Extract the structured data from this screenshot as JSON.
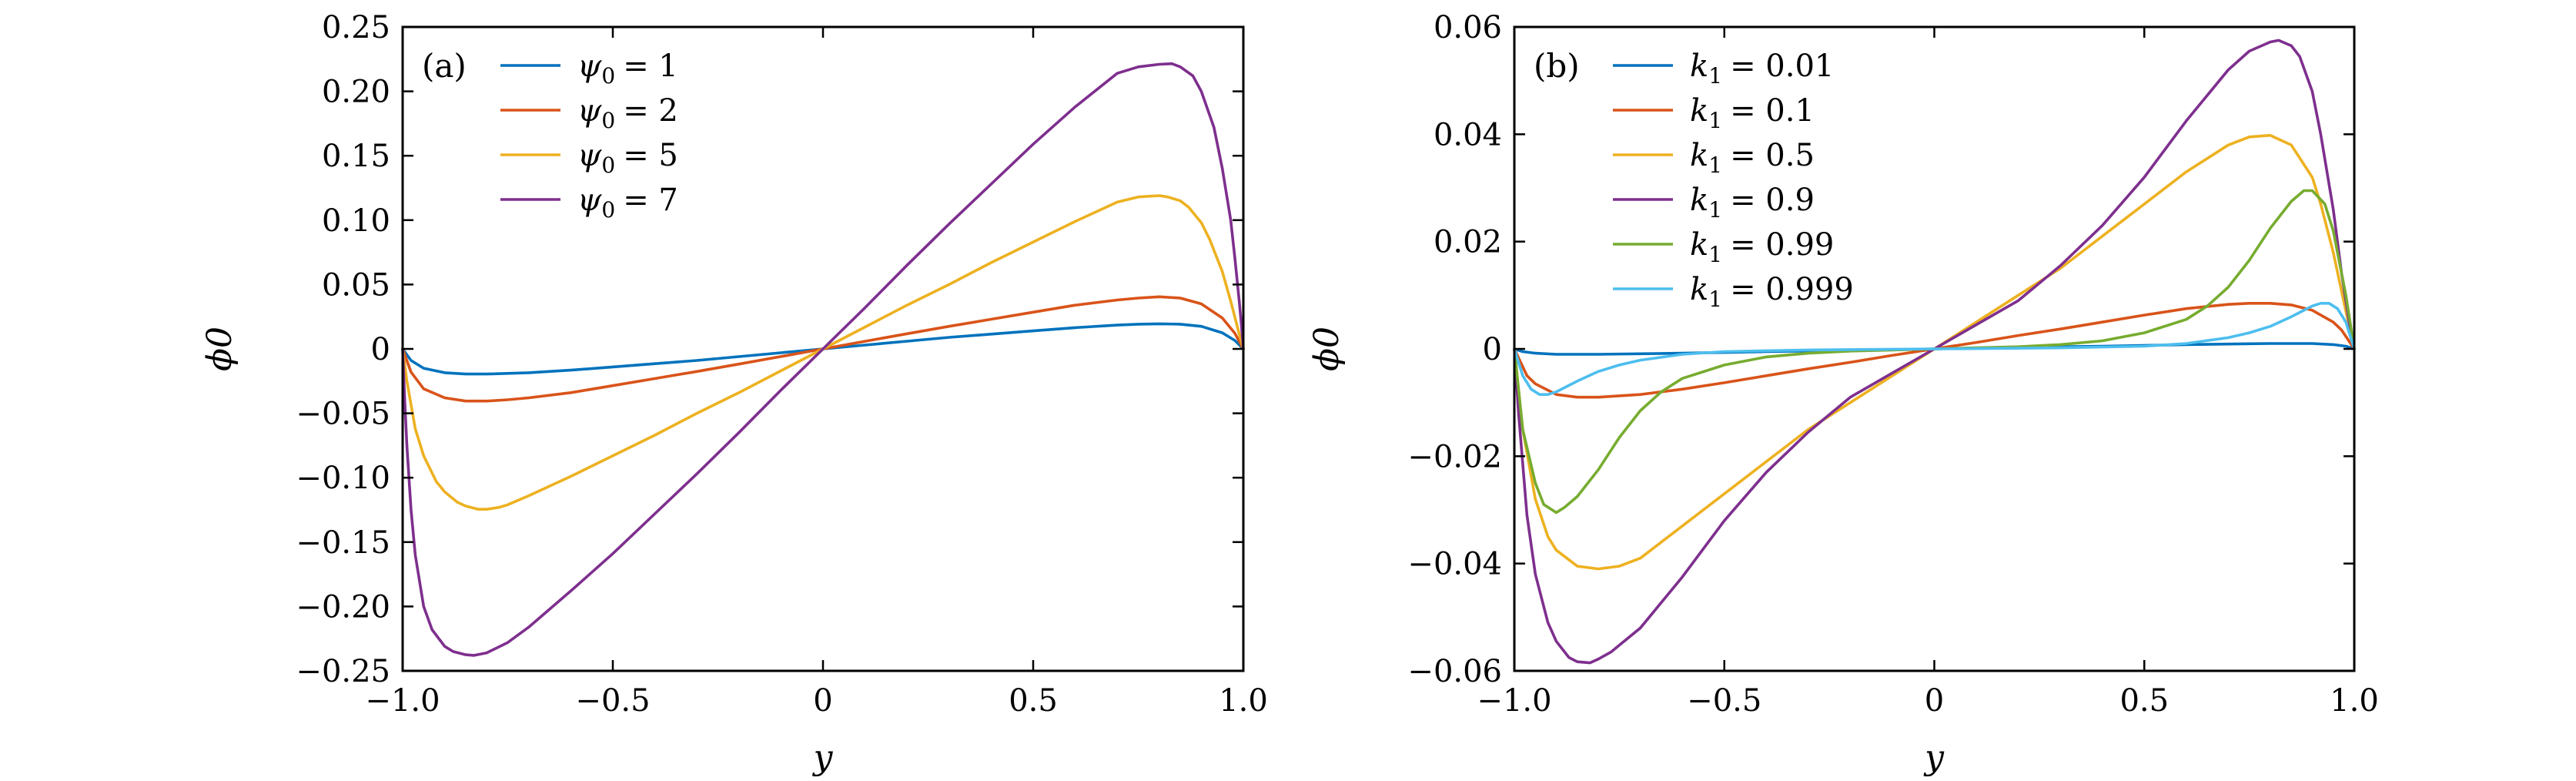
{
  "chart_data": [
    {
      "type": "line",
      "panel_label": "(a)",
      "xlabel": "y",
      "ylabel": "ϕ0",
      "xlim": [
        -1.0,
        1.0
      ],
      "ylim": [
        -0.25,
        0.25
      ],
      "xticks": [
        -1.0,
        -0.5,
        0,
        0.5,
        1.0
      ],
      "xtick_labels": [
        "−1.0",
        "−0.5",
        "0",
        "0.5",
        "1.0"
      ],
      "yticks": [
        0.25,
        0.2,
        0.15,
        0.1,
        0.05,
        0,
        -0.05,
        -0.1,
        -0.15,
        -0.2,
        -0.25
      ],
      "ytick_labels": [
        "0.25",
        "0.20",
        "0.15",
        "0.10",
        "0.05",
        "0",
        "−0.05",
        "−0.10",
        "−0.15",
        "−0.20",
        "−0.25"
      ],
      "legend_position": "top-left",
      "series": [
        {
          "legend_var": "ψ",
          "legend_sub": "0",
          "legend_value": "= 1",
          "color": "#0072bd",
          "x": [
            -1.0,
            -0.98,
            -0.95,
            -0.9,
            -0.85,
            -0.8,
            -0.7,
            -0.6,
            -0.5,
            -0.4,
            -0.3,
            -0.2,
            -0.1,
            0.0,
            0.1,
            0.2,
            0.3,
            0.4,
            0.5,
            0.6,
            0.7,
            0.75,
            0.8,
            0.85,
            0.9,
            0.95,
            0.98,
            1.0
          ],
          "values": [
            0.0,
            -0.009,
            -0.015,
            -0.0185,
            -0.0195,
            -0.0195,
            -0.0185,
            -0.0165,
            -0.014,
            -0.0115,
            -0.009,
            -0.006,
            -0.003,
            0.0,
            0.003,
            0.006,
            0.009,
            0.0115,
            0.014,
            0.0165,
            0.0185,
            0.0192,
            0.0195,
            0.0192,
            0.0175,
            0.0125,
            0.0065,
            0.0
          ]
        },
        {
          "legend_var": "ψ",
          "legend_sub": "0",
          "legend_value": "= 2",
          "color": "#d95319",
          "x": [
            -1.0,
            -0.98,
            -0.95,
            -0.9,
            -0.85,
            -0.8,
            -0.75,
            -0.7,
            -0.6,
            -0.5,
            -0.4,
            -0.3,
            -0.2,
            -0.1,
            0.0,
            0.1,
            0.2,
            0.3,
            0.4,
            0.5,
            0.6,
            0.7,
            0.75,
            0.8,
            0.85,
            0.9,
            0.95,
            0.98,
            1.0
          ],
          "values": [
            0.0,
            -0.018,
            -0.031,
            -0.038,
            -0.0405,
            -0.0405,
            -0.0395,
            -0.038,
            -0.034,
            -0.0285,
            -0.023,
            -0.0175,
            -0.0118,
            -0.0059,
            0.0,
            0.0059,
            0.0118,
            0.0175,
            0.023,
            0.0285,
            0.034,
            0.038,
            0.0395,
            0.0405,
            0.0395,
            0.035,
            0.024,
            0.012,
            0.0
          ]
        },
        {
          "legend_var": "ψ",
          "legend_sub": "0",
          "legend_value": "= 5",
          "color": "#edb120",
          "x": [
            -1.0,
            -0.99,
            -0.97,
            -0.95,
            -0.92,
            -0.9,
            -0.87,
            -0.85,
            -0.82,
            -0.8,
            -0.77,
            -0.75,
            -0.7,
            -0.6,
            -0.5,
            -0.4,
            -0.3,
            -0.2,
            -0.1,
            0.0,
            0.1,
            0.2,
            0.3,
            0.4,
            0.5,
            0.6,
            0.7,
            0.75,
            0.8,
            0.82,
            0.85,
            0.87,
            0.9,
            0.92,
            0.95,
            0.97,
            0.99,
            1.0
          ],
          "values": [
            0.0,
            -0.025,
            -0.062,
            -0.083,
            -0.103,
            -0.111,
            -0.119,
            -0.122,
            -0.1245,
            -0.1245,
            -0.123,
            -0.121,
            -0.114,
            -0.099,
            -0.083,
            -0.067,
            -0.05,
            -0.034,
            -0.017,
            0.0,
            0.017,
            0.034,
            0.05,
            0.067,
            0.083,
            0.099,
            0.114,
            0.118,
            0.119,
            0.118,
            0.115,
            0.11,
            0.098,
            0.085,
            0.06,
            0.037,
            0.012,
            0.0
          ]
        },
        {
          "legend_var": "ψ",
          "legend_sub": "0",
          "legend_value": "= 7",
          "color": "#7e2f8e",
          "x": [
            -1.0,
            -0.995,
            -0.99,
            -0.98,
            -0.97,
            -0.95,
            -0.93,
            -0.9,
            -0.88,
            -0.85,
            -0.83,
            -0.8,
            -0.75,
            -0.7,
            -0.6,
            -0.5,
            -0.4,
            -0.3,
            -0.2,
            -0.1,
            0.0,
            0.1,
            0.2,
            0.3,
            0.4,
            0.5,
            0.6,
            0.7,
            0.75,
            0.8,
            0.83,
            0.85,
            0.88,
            0.9,
            0.93,
            0.95,
            0.97,
            0.98,
            0.99,
            0.995,
            1.0
          ],
          "values": [
            0.0,
            -0.04,
            -0.075,
            -0.125,
            -0.16,
            -0.2,
            -0.218,
            -0.231,
            -0.235,
            -0.2375,
            -0.238,
            -0.236,
            -0.228,
            -0.216,
            -0.188,
            -0.159,
            -0.128,
            -0.097,
            -0.065,
            -0.032,
            0.0,
            0.032,
            0.065,
            0.097,
            0.128,
            0.159,
            0.188,
            0.214,
            0.219,
            0.221,
            0.2215,
            0.219,
            0.212,
            0.2,
            0.172,
            0.14,
            0.1,
            0.07,
            0.038,
            0.02,
            0.0
          ]
        }
      ]
    },
    {
      "type": "line",
      "panel_label": "(b)",
      "xlabel": "y",
      "ylabel": "ϕ0",
      "xlim": [
        -1.0,
        1.0
      ],
      "ylim": [
        -0.06,
        0.06
      ],
      "xticks": [
        -1.0,
        -0.5,
        0,
        0.5,
        1.0
      ],
      "xtick_labels": [
        "−1.0",
        "−0.5",
        "0",
        "0.5",
        "1.0"
      ],
      "yticks": [
        0.06,
        0.04,
        0.02,
        0,
        -0.02,
        -0.04,
        -0.06
      ],
      "ytick_labels": [
        "0.06",
        "0.04",
        "0.02",
        "0",
        "−0.02",
        "−0.04",
        "−0.06"
      ],
      "legend_position": "top-left",
      "series": [
        {
          "legend_var": "k",
          "legend_sub": "1",
          "legend_value": "= 0.01",
          "color": "#0072bd",
          "x": [
            -1.0,
            -0.98,
            -0.95,
            -0.9,
            -0.8,
            -0.6,
            -0.4,
            -0.2,
            0.0,
            0.2,
            0.4,
            0.6,
            0.8,
            0.9,
            0.95,
            0.98,
            1.0
          ],
          "values": [
            0.0,
            -0.0005,
            -0.0008,
            -0.001,
            -0.001,
            -0.0008,
            -0.0005,
            -0.0003,
            0.0,
            0.0003,
            0.0005,
            0.0008,
            0.001,
            0.001,
            0.0008,
            0.0005,
            0.0
          ]
        },
        {
          "legend_var": "k",
          "legend_sub": "1",
          "legend_value": "= 0.1",
          "color": "#d95319",
          "x": [
            -1.0,
            -0.97,
            -0.95,
            -0.9,
            -0.85,
            -0.8,
            -0.7,
            -0.6,
            -0.5,
            -0.4,
            -0.3,
            -0.2,
            -0.1,
            0.0,
            0.1,
            0.2,
            0.3,
            0.4,
            0.5,
            0.6,
            0.7,
            0.75,
            0.8,
            0.85,
            0.9,
            0.95,
            0.97,
            1.0
          ],
          "values": [
            0.0,
            -0.005,
            -0.0065,
            -0.0085,
            -0.009,
            -0.009,
            -0.0085,
            -0.0075,
            -0.0063,
            -0.005,
            -0.0037,
            -0.0025,
            -0.0012,
            0.0,
            0.0012,
            0.0025,
            0.0037,
            0.005,
            0.0063,
            0.0075,
            0.0083,
            0.0085,
            0.0085,
            0.0082,
            0.0072,
            0.005,
            0.0035,
            0.0
          ]
        },
        {
          "legend_var": "k",
          "legend_sub": "1",
          "legend_value": "= 0.5",
          "color": "#edb120",
          "x": [
            -1.0,
            -0.98,
            -0.95,
            -0.92,
            -0.9,
            -0.85,
            -0.8,
            -0.75,
            -0.7,
            -0.6,
            -0.5,
            -0.4,
            -0.3,
            -0.2,
            -0.1,
            0.0,
            0.1,
            0.2,
            0.3,
            0.4,
            0.5,
            0.6,
            0.7,
            0.75,
            0.8,
            0.85,
            0.9,
            0.92,
            0.95,
            0.98,
            1.0
          ],
          "values": [
            0.0,
            -0.015,
            -0.028,
            -0.035,
            -0.0375,
            -0.0405,
            -0.041,
            -0.0405,
            -0.039,
            -0.033,
            -0.027,
            -0.021,
            -0.015,
            -0.01,
            -0.005,
            0.0,
            0.005,
            0.01,
            0.015,
            0.021,
            0.027,
            0.033,
            0.038,
            0.0395,
            0.0398,
            0.038,
            0.032,
            0.027,
            0.018,
            0.007,
            0.0
          ]
        },
        {
          "legend_var": "k",
          "legend_sub": "1",
          "legend_value": "= 0.9",
          "color": "#7e2f8e",
          "x": [
            -1.0,
            -0.99,
            -0.97,
            -0.95,
            -0.92,
            -0.9,
            -0.87,
            -0.85,
            -0.82,
            -0.8,
            -0.77,
            -0.75,
            -0.7,
            -0.6,
            -0.5,
            -0.4,
            -0.3,
            -0.2,
            -0.1,
            0.0,
            0.1,
            0.2,
            0.3,
            0.4,
            0.5,
            0.6,
            0.7,
            0.75,
            0.8,
            0.82,
            0.85,
            0.87,
            0.9,
            0.92,
            0.95,
            0.97,
            0.99,
            1.0
          ],
          "values": [
            0.0,
            -0.012,
            -0.031,
            -0.042,
            -0.051,
            -0.0545,
            -0.0575,
            -0.0583,
            -0.0585,
            -0.0578,
            -0.0565,
            -0.0552,
            -0.052,
            -0.0425,
            -0.032,
            -0.023,
            -0.0155,
            -0.009,
            -0.0045,
            0.0,
            0.0045,
            0.009,
            0.0155,
            0.023,
            0.032,
            0.0425,
            0.052,
            0.0555,
            0.0572,
            0.0575,
            0.0565,
            0.0545,
            0.048,
            0.04,
            0.026,
            0.014,
            0.004,
            0.0
          ]
        },
        {
          "legend_var": "k",
          "legend_sub": "1",
          "legend_value": "= 0.99",
          "color": "#77ac30",
          "x": [
            -1.0,
            -0.98,
            -0.95,
            -0.93,
            -0.9,
            -0.88,
            -0.85,
            -0.8,
            -0.75,
            -0.7,
            -0.65,
            -0.6,
            -0.5,
            -0.4,
            -0.3,
            -0.2,
            -0.1,
            0.0,
            0.1,
            0.2,
            0.3,
            0.4,
            0.5,
            0.6,
            0.65,
            0.7,
            0.75,
            0.8,
            0.85,
            0.88,
            0.9,
            0.93,
            0.95,
            0.98,
            1.0
          ],
          "values": [
            0.0,
            -0.015,
            -0.025,
            -0.029,
            -0.0305,
            -0.0295,
            -0.0275,
            -0.0225,
            -0.0165,
            -0.0115,
            -0.008,
            -0.0055,
            -0.003,
            -0.0015,
            -0.0008,
            -0.0004,
            -0.0002,
            0.0,
            0.0002,
            0.0004,
            0.0008,
            0.0015,
            0.003,
            0.0055,
            0.008,
            0.0115,
            0.0165,
            0.0225,
            0.0275,
            0.0295,
            0.0295,
            0.027,
            0.022,
            0.01,
            0.0
          ]
        },
        {
          "legend_var": "k",
          "legend_sub": "1",
          "legend_value": "= 0.999",
          "color": "#4dbeee",
          "x": [
            -1.0,
            -0.98,
            -0.96,
            -0.94,
            -0.92,
            -0.9,
            -0.87,
            -0.85,
            -0.8,
            -0.75,
            -0.7,
            -0.6,
            -0.5,
            -0.3,
            0.0,
            0.3,
            0.5,
            0.6,
            0.7,
            0.75,
            0.8,
            0.85,
            0.87,
            0.9,
            0.92,
            0.94,
            0.96,
            0.98,
            1.0
          ],
          "values": [
            0.0,
            -0.005,
            -0.0075,
            -0.0085,
            -0.0085,
            -0.008,
            -0.0068,
            -0.006,
            -0.0042,
            -0.003,
            -0.0021,
            -0.001,
            -0.0005,
            -0.0002,
            0.0,
            0.0002,
            0.0005,
            0.001,
            0.0021,
            0.003,
            0.0042,
            0.006,
            0.0068,
            0.008,
            0.0085,
            0.0085,
            0.0075,
            0.005,
            0.0
          ]
        }
      ]
    }
  ]
}
